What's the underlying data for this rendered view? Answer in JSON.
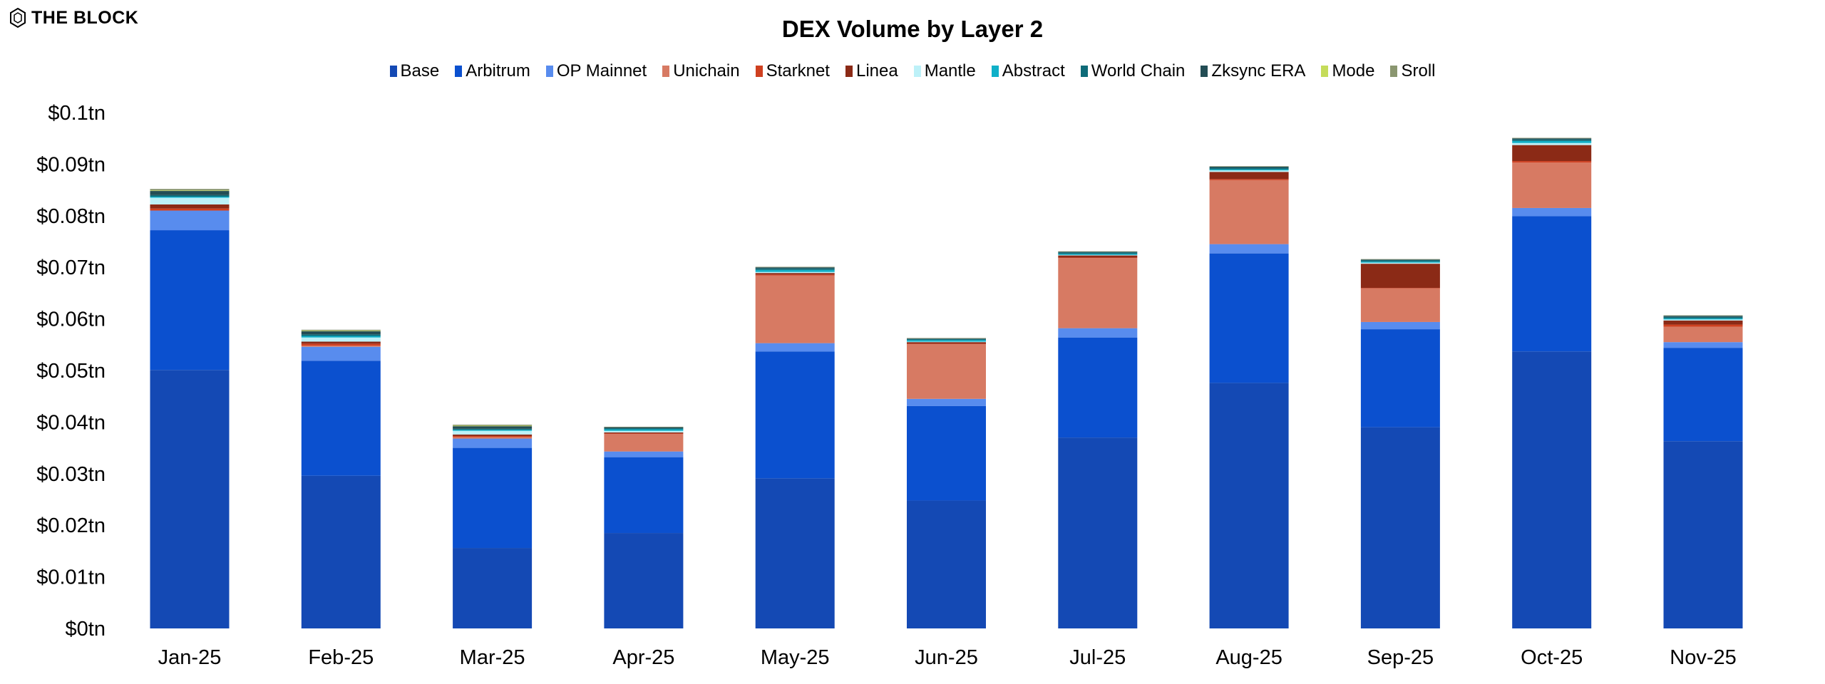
{
  "brand": {
    "logo_text": "THE BLOCK"
  },
  "chart_data": {
    "type": "bar",
    "stacked": true,
    "title": "DEX Volume by Layer 2",
    "xlabel": "",
    "ylabel": "",
    "ylim": [
      0,
      0.1
    ],
    "yticks": [
      0,
      0.01,
      0.02,
      0.03,
      0.04,
      0.05,
      0.06,
      0.07,
      0.08,
      0.09,
      0.1
    ],
    "ytick_labels": [
      "$0tn",
      "$0.01tn",
      "$0.02tn",
      "$0.03tn",
      "$0.04tn",
      "$0.05tn",
      "$0.06tn",
      "$0.07tn",
      "$0.08tn",
      "$0.09tn",
      "$0.1tn"
    ],
    "grid": false,
    "legend_position": "top",
    "categories": [
      "Jan-25",
      "Feb-25",
      "Mar-25",
      "Apr-25",
      "May-25",
      "Jun-25",
      "Jul-25",
      "Aug-25",
      "Sep-25",
      "Oct-25",
      "Nov-25"
    ],
    "series": [
      {
        "name": "Base",
        "color": "#1449b4",
        "values": [
          0.0501,
          0.0296,
          0.0156,
          0.0185,
          0.0291,
          0.0248,
          0.037,
          0.0476,
          0.039,
          0.0537,
          0.0363
        ]
      },
      {
        "name": "Arbitrum",
        "color": "#0b50cf",
        "values": [
          0.0271,
          0.0223,
          0.0194,
          0.0147,
          0.0246,
          0.0183,
          0.0194,
          0.0251,
          0.019,
          0.0262,
          0.0181
        ]
      },
      {
        "name": "OP Mainnet",
        "color": "#588cee",
        "values": [
          0.0038,
          0.0027,
          0.0018,
          0.0011,
          0.0016,
          0.0014,
          0.0018,
          0.0018,
          0.0014,
          0.0016,
          0.0011
        ]
      },
      {
        "name": "Unichain",
        "color": "#d77a63",
        "values": [
          0,
          0.0002,
          0.0003,
          0.0034,
          0.0131,
          0.0106,
          0.0136,
          0.0124,
          0.0065,
          0.0088,
          0.003
        ]
      },
      {
        "name": "Starknet",
        "color": "#cf4020",
        "values": [
          0.0004,
          0.0004,
          0.0002,
          0.0001,
          0.0002,
          0.0001,
          0.0001,
          0.0002,
          0.0001,
          0.0003,
          0.0004
        ]
      },
      {
        "name": "Linea",
        "color": "#8b2a16",
        "values": [
          0.0008,
          0.0004,
          0.0003,
          0.0002,
          0.0003,
          0.0003,
          0.0004,
          0.0014,
          0.0047,
          0.0031,
          0.0008
        ]
      },
      {
        "name": "Mantle",
        "color": "#bdf1f8",
        "values": [
          0.0013,
          0.0008,
          0.0007,
          0.0003,
          0.0002,
          0.0001,
          0.0001,
          0.0003,
          0.0002,
          0.0004,
          0.0002
        ]
      },
      {
        "name": "Abstract",
        "color": "#0fb0c8",
        "values": [
          0.0002,
          0.0003,
          0.0002,
          0.0003,
          0.0004,
          0.0003,
          0.0002,
          0.0002,
          0.0002,
          0.0004,
          0.0002
        ]
      },
      {
        "name": "World Chain",
        "color": "#0e6b78",
        "values": [
          0.0003,
          0.0003,
          0.0002,
          0.0002,
          0.0003,
          0.0002,
          0.0003,
          0.0003,
          0.0003,
          0.0003,
          0.0003
        ]
      },
      {
        "name": "Zksync ERA",
        "color": "#234d55",
        "values": [
          0.0008,
          0.0006,
          0.0005,
          0.0002,
          0.0002,
          0.0001,
          0.0001,
          0.0002,
          0.0001,
          0.0002,
          0.0002
        ]
      },
      {
        "name": "Mode",
        "color": "#c5dc5a",
        "values": [
          0.0001,
          0.0001,
          0.0001,
          0,
          0,
          0,
          0,
          0,
          0,
          0,
          0
        ]
      },
      {
        "name": "Sroll",
        "color": "#8a9670",
        "values": [
          0.0003,
          0.0002,
          0.0002,
          0.0001,
          0.0001,
          0.0001,
          0.0001,
          0.0001,
          0.0001,
          0.0001,
          0.0001
        ]
      }
    ]
  }
}
